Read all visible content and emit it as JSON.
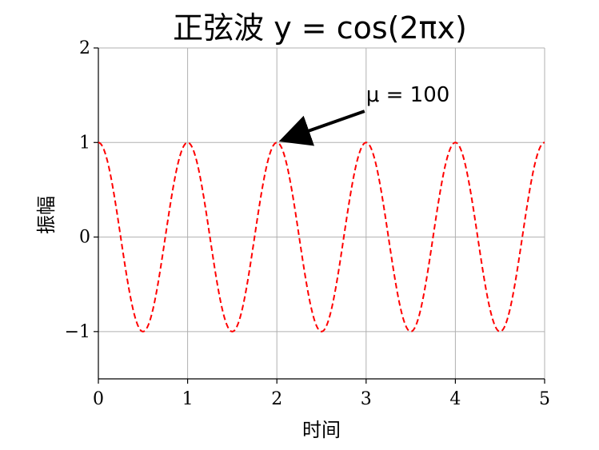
{
  "chart_data": {
    "type": "line",
    "title": "正弦波  y = cos(2πx)",
    "xlabel": "时间",
    "ylabel": "振幅",
    "xlim": [
      0,
      5
    ],
    "ylim": [
      -1.5,
      2
    ],
    "x_ticks": [
      0,
      1,
      2,
      3,
      4,
      5
    ],
    "x_tick_labels": [
      "0",
      "1",
      "2",
      "3",
      "4",
      "5"
    ],
    "y_ticks": [
      -1,
      0,
      1,
      2
    ],
    "y_tick_labels": [
      "−1",
      "0",
      "1",
      "2"
    ],
    "grid": true,
    "series": [
      {
        "function": "y = cos(2πx)",
        "x_range": [
          0,
          5
        ],
        "samples": 500,
        "color": "#ff0000",
        "linestyle": "dashed"
      }
    ],
    "annotation": {
      "text": "μ = 100",
      "x": 2,
      "y": 1,
      "text_x": 3,
      "text_y": 1.5
    }
  }
}
